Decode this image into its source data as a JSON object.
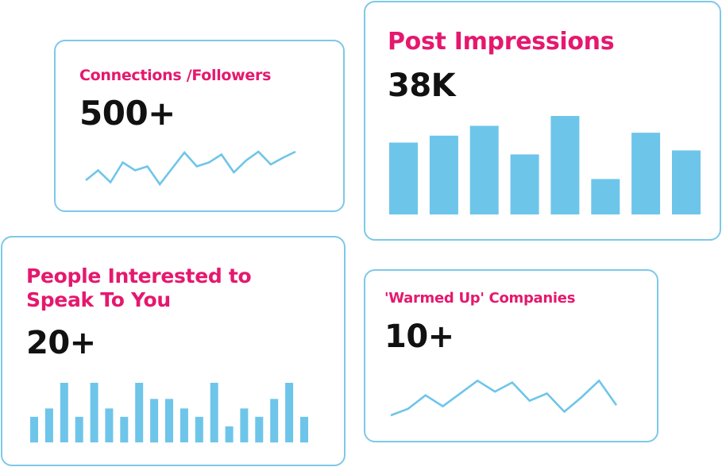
{
  "cards": {
    "connections": {
      "title": "Connections /Followers",
      "value": "500+",
      "trend": [
        0.1,
        0.35,
        0.05,
        0.55,
        0.35,
        0.45,
        0.0,
        0.4,
        0.8,
        0.45,
        0.55,
        0.75,
        0.3,
        0.6,
        0.82,
        0.5,
        0.67,
        0.82
      ]
    },
    "post_impressions": {
      "title": "Post Impressions",
      "value": "38K",
      "bars": [
        0.73,
        0.8,
        0.9,
        0.61,
        1.0,
        0.36,
        0.83,
        0.65
      ]
    },
    "people_interested": {
      "title_lines": [
        "People Interested to",
        "Speak To You"
      ],
      "value": "20+",
      "bars": [
        0.43,
        0.57,
        1.0,
        0.43,
        1.0,
        0.57,
        0.43,
        1.0,
        0.73,
        0.73,
        0.57,
        0.43,
        1.0,
        0.27,
        0.57,
        0.43,
        0.73,
        1.0,
        0.43
      ]
    },
    "warmed_up": {
      "title": "'Warmed Up' Companies",
      "value": "10+",
      "trend": [
        0.0,
        0.18,
        0.55,
        0.25,
        0.6,
        0.95,
        0.65,
        0.9,
        0.4,
        0.6,
        0.1,
        0.5,
        0.95,
        0.28
      ]
    }
  },
  "colors": {
    "accent": "#e5186e",
    "chart": "#6ec5ea",
    "border": "#7ec8e8",
    "value": "#111111"
  }
}
